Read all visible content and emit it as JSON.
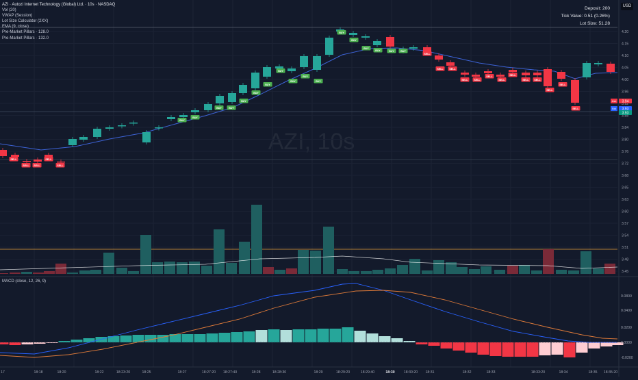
{
  "header": {
    "title": "AZI · Autozi Internet Technology (Global) Ltd. · 10s · NASDAQ",
    "currency": "USD",
    "watermark": "AZI, 10s"
  },
  "indicators": [
    "Vol (20)",
    "VWAP (Session)",
    "Lot Size Calculator (2XX)",
    "EMA (9, close)",
    "Pre-Market Pillars · 128.0",
    "Pre-Market Pillars · 132.0"
  ],
  "info_panel": {
    "deposit": "Deposit: 200",
    "tick_value": "Tick Value: 0.51 (0.26%)",
    "lot_size": "Lot Size: 51.28"
  },
  "price_axis": [
    "4.20",
    "4.15",
    "4.10",
    "4.05",
    "4.00",
    "3.96",
    "3.92",
    "3.88",
    "3.84",
    "3.80",
    "3.76",
    "3.72",
    "3.68",
    "3.65",
    "3.63",
    "3.60",
    "3.57",
    "3.54",
    "3.51",
    "3.48",
    "3.45"
  ],
  "price_tags": [
    {
      "label": "Ask",
      "value": "3.94",
      "color": "#f23645"
    },
    {
      "label": "Bid",
      "value": "3.93",
      "color": "#2962ff"
    },
    {
      "label": "",
      "value": "3.93",
      "color": "#089981"
    }
  ],
  "macd": {
    "label": "MACD (close, 12, 26, 9)",
    "axis": [
      "0.0800",
      "0.0400",
      "0.0200",
      "0.0000",
      "-0.0200"
    ]
  },
  "time_axis": [
    "17",
    "18:18",
    "18:20",
    "18:22",
    "18:23:20",
    "18:25",
    "18:27",
    "18:27:20",
    "18:27:40",
    "18:28",
    "18:28:30",
    "18:29",
    "18:29:20",
    "18:29:40",
    "18:30",
    "18:30:20",
    "18:31",
    "18:32",
    "18:33",
    "18:33:20",
    "18:34",
    "18:35",
    "18:35:20"
  ],
  "signals": {
    "buy": "BUY",
    "sell": "SELL"
  },
  "colors": {
    "background": "#131a2b",
    "up": "#26a69a",
    "down": "#f23645",
    "volume_up": "#1f5f60",
    "volume_down": "#7a2a38",
    "ema": "#3d63d6",
    "vwap": "#ffffff",
    "macd_line": "#2962ff",
    "signal_line": "#e07b39",
    "buy_tag": "#4caf50",
    "sell_tag": "#f23645"
  }
}
